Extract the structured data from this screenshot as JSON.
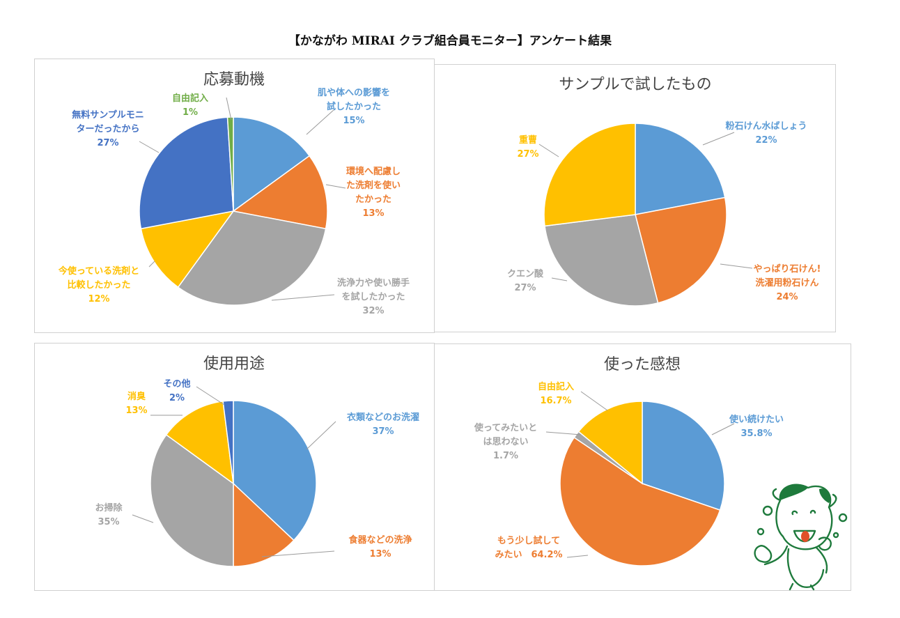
{
  "page": {
    "title": "【かながわ MIRAI クラブ組合員モニター】アンケート結果"
  },
  "colors": {
    "blue": "#5B9BD5",
    "orange": "#ED7D31",
    "gray": "#A5A5A5",
    "yellow": "#FFC000",
    "darkblue": "#4472C4",
    "green": "#70AD47"
  },
  "chart_data": [
    {
      "type": "pie",
      "title": "応募動機",
      "slices": [
        {
          "lines": [
            "肌や体への影響を",
            "試したかった"
          ],
          "value": 15,
          "value_label": "15%",
          "color": "#5B9BD5"
        },
        {
          "lines": [
            "環境へ配慮し",
            "た洗剤を使い",
            "たかった"
          ],
          "value": 13,
          "value_label": "13%",
          "color": "#ED7D31"
        },
        {
          "lines": [
            "洗浄力や使い勝手",
            "を試したかった"
          ],
          "value": 32,
          "value_label": "32%",
          "color": "#A5A5A5"
        },
        {
          "lines": [
            "今使っている洗剤と",
            "比較したかった"
          ],
          "value": 12,
          "value_label": "12%",
          "color": "#FFC000"
        },
        {
          "lines": [
            "無料サンプルモニ",
            "ターだったから"
          ],
          "value": 27,
          "value_label": "27%",
          "color": "#4472C4"
        },
        {
          "lines": [
            "自由記入"
          ],
          "value": 1,
          "value_label": "1%",
          "color": "#70AD47"
        }
      ]
    },
    {
      "type": "pie",
      "title": "サンプルで試したもの",
      "slices": [
        {
          "lines": [
            "粉石けん水ばしょう"
          ],
          "value": 22,
          "value_label": "22%",
          "color": "#5B9BD5"
        },
        {
          "lines": [
            "やっぱり石けん!",
            "洗濯用粉石けん"
          ],
          "value": 24,
          "value_label": "24%",
          "color": "#ED7D31"
        },
        {
          "lines": [
            "クエン酸"
          ],
          "value": 27,
          "value_label": "27%",
          "color": "#A5A5A5"
        },
        {
          "lines": [
            "重曹"
          ],
          "value": 27,
          "value_label": "27%",
          "color": "#FFC000"
        }
      ]
    },
    {
      "type": "pie",
      "title": "使用用途",
      "slices": [
        {
          "lines": [
            "衣類などのお洗濯"
          ],
          "value": 37,
          "value_label": "37%",
          "color": "#5B9BD5"
        },
        {
          "lines": [
            "食器などの洗浄"
          ],
          "value": 13,
          "value_label": "13%",
          "color": "#ED7D31"
        },
        {
          "lines": [
            "お掃除"
          ],
          "value": 35,
          "value_label": "35%",
          "color": "#A5A5A5"
        },
        {
          "lines": [
            "消臭"
          ],
          "value": 13,
          "value_label": "13%",
          "color": "#FFC000"
        },
        {
          "lines": [
            "その他"
          ],
          "value": 2,
          "value_label": "2%",
          "color": "#4472C4"
        }
      ]
    },
    {
      "type": "pie",
      "title": "使った感想",
      "slices": [
        {
          "lines": [
            "使い続けたい"
          ],
          "value": 35.8,
          "value_label": "35.8%",
          "color": "#5B9BD5"
        },
        {
          "lines": [
            "もう少し試して",
            "みたい"
          ],
          "value": 64.2,
          "value_label": "64.2%",
          "color": "#ED7D31"
        },
        {
          "lines": [
            "使ってみたいと",
            "は思わない"
          ],
          "value": 1.7,
          "value_label": "1.7%",
          "color": "#A5A5A5"
        },
        {
          "lines": [
            "自由記入"
          ],
          "value": 16.7,
          "value_label": "16.7%",
          "color": "#FFC000"
        }
      ]
    }
  ]
}
